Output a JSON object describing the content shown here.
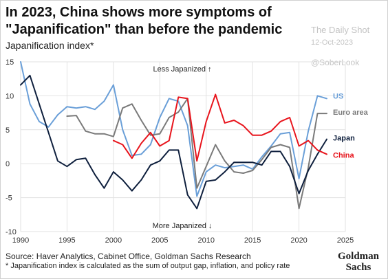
{
  "header": {
    "title": "In 2023, China shows more symptoms of \"Japanification\" than before the pandemic",
    "subtitle": "Japanification index*"
  },
  "watermark": {
    "name": "The Daily Shot",
    "date": "12-Oct-2023",
    "handle": "@SoberLook"
  },
  "footer": {
    "source": "Source: Haver Analytics, Cabinet Office, Goldman Sachs Research",
    "note": "* Japanification index is calculated as the sum of output gap, inflation, and policy rate",
    "logo": "Goldman Sachs"
  },
  "chart_data": {
    "type": "line",
    "xlim": [
      1990,
      2025
    ],
    "ylim": [
      -10,
      15
    ],
    "x_ticks": [
      1990,
      1995,
      2000,
      2005,
      2010,
      2015,
      2020,
      2025
    ],
    "y_ticks": [
      15,
      10,
      5,
      0,
      -5,
      -10
    ],
    "grid": true,
    "annotations": {
      "top": "Less Japanized ↑",
      "bottom": "More Japanized ↓"
    },
    "series": [
      {
        "name": "US",
        "color": "#6a9fd8",
        "x": [
          1990,
          1991,
          1992,
          1993,
          1994,
          1995,
          1996,
          1997,
          1998,
          1999,
          2000,
          2001,
          2002,
          2003,
          2004,
          2005,
          2006,
          2007,
          2008,
          2009,
          2010,
          2011,
          2012,
          2013,
          2014,
          2015,
          2016,
          2017,
          2018,
          2019,
          2020,
          2021,
          2022,
          2023
        ],
        "y": [
          15,
          8.8,
          6.2,
          5.4,
          7.2,
          8.4,
          8.2,
          8.4,
          8.0,
          9.2,
          11.6,
          5.0,
          1.2,
          1.4,
          2.8,
          6.8,
          9.6,
          9.2,
          5.6,
          -4.8,
          -1.2,
          -0.2,
          -0.6,
          -0.4,
          -0.2,
          -0.8,
          1.0,
          2.6,
          4.4,
          4.6,
          -2.2,
          4.8,
          10.0,
          9.6
        ]
      },
      {
        "name": "Euro area",
        "color": "#7a7a7a",
        "x": [
          1995,
          1996,
          1997,
          1998,
          1999,
          2000,
          2001,
          2002,
          2003,
          2004,
          2005,
          2006,
          2007,
          2008,
          2009,
          2010,
          2011,
          2012,
          2013,
          2014,
          2015,
          2016,
          2017,
          2018,
          2019,
          2020,
          2021,
          2022,
          2023
        ],
        "y": [
          7.0,
          7.1,
          4.8,
          4.4,
          4.4,
          4.0,
          8.2,
          8.8,
          6.4,
          4.2,
          4.4,
          6.8,
          7.6,
          9.6,
          -3.6,
          -0.4,
          2.8,
          0.4,
          -1.2,
          -1.4,
          -1.0,
          0.6,
          2.4,
          2.8,
          2.4,
          -6.6,
          -0.6,
          7.4,
          7.4
        ]
      },
      {
        "name": "Japan",
        "color": "#0e1f3d",
        "x": [
          1990,
          1991,
          1992,
          1993,
          1994,
          1995,
          1996,
          1997,
          1998,
          1999,
          2000,
          2001,
          2002,
          2003,
          2004,
          2005,
          2006,
          2007,
          2008,
          2009,
          2010,
          2011,
          2012,
          2013,
          2014,
          2015,
          2016,
          2017,
          2018,
          2019,
          2020,
          2021,
          2022,
          2023
        ],
        "y": [
          11.6,
          13.0,
          8.8,
          4.6,
          0.4,
          -0.4,
          0.6,
          0.8,
          -1.6,
          -3.6,
          -1.2,
          -2.4,
          -4.0,
          -2.4,
          -0.2,
          0.4,
          2.0,
          2.0,
          -4.6,
          -6.6,
          -2.6,
          -2.4,
          -1.2,
          0.2,
          0.2,
          0.2,
          -0.2,
          1.8,
          1.8,
          -0.4,
          -4.4,
          -1.0,
          1.4,
          3.6
        ]
      },
      {
        "name": "China",
        "color": "#e8141c",
        "x": [
          2000,
          2001,
          2002,
          2003,
          2004,
          2005,
          2006,
          2007,
          2008,
          2009,
          2010,
          2011,
          2012,
          2013,
          2014,
          2015,
          2016,
          2017,
          2018,
          2019,
          2020,
          2021,
          2022,
          2023
        ],
        "y": [
          3.4,
          2.8,
          0.8,
          3.0,
          4.6,
          2.6,
          3.4,
          9.8,
          9.6,
          0.4,
          6.2,
          10.2,
          6.0,
          6.4,
          5.6,
          4.2,
          4.2,
          4.8,
          6.2,
          6.8,
          2.6,
          3.4,
          2.0,
          1.4
        ]
      }
    ]
  }
}
